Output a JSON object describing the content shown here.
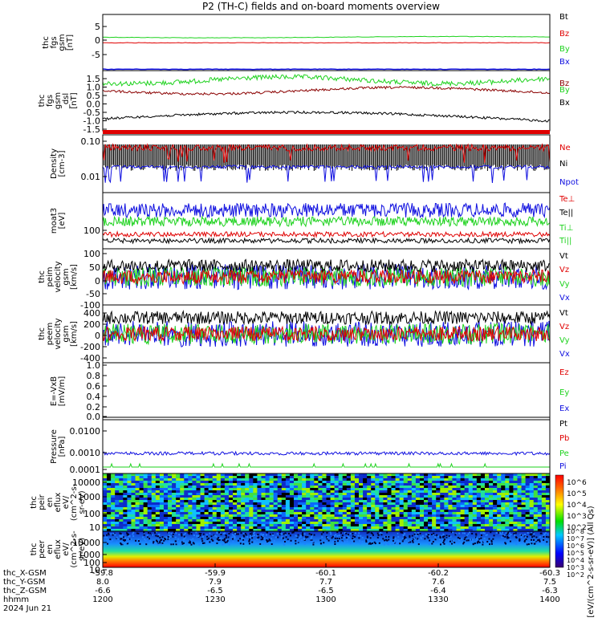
{
  "title": "P2 (TH-C) fields and on-board moments overview",
  "colors": {
    "black": "#000000",
    "red": "#e00000",
    "green": "#1ed21e",
    "blue": "#1010e0",
    "darkred": "#8b0000"
  },
  "panels": [
    {
      "id": "fgs",
      "ylabel": [
        "thc",
        "fgs",
        "gsm",
        "[nT]"
      ],
      "legend": [
        [
          "Bt",
          "black"
        ],
        [
          "Bz",
          "red"
        ],
        [
          "By",
          "green"
        ],
        [
          "Bx",
          "blue"
        ]
      ],
      "ticks": [
        "5",
        "0",
        "-5"
      ]
    },
    {
      "id": "fgs-dsl",
      "ylabel": [
        "thc",
        "fgs",
        "gsm",
        "_dsl",
        "[nT]"
      ],
      "legend": [
        [
          "Bz",
          "darkred"
        ],
        [
          "By",
          "green"
        ],
        [
          "Bx",
          "black"
        ]
      ],
      "ticks": [
        "1.5",
        "1.0",
        "0.5",
        "0.0",
        "-0.5",
        "-1.0",
        "-1.5"
      ]
    },
    {
      "id": "density",
      "ylabel": [
        "Density",
        "[cm-3]"
      ],
      "legend": [
        [
          "Ne",
          "red"
        ],
        [
          "Ni",
          "black"
        ],
        [
          "Npot",
          "blue"
        ]
      ],
      "ticks": [
        "0.10",
        "0.01"
      ]
    },
    {
      "id": "temp",
      "ylabel": [
        "moat3",
        "[eV]"
      ],
      "legend": [
        [
          "Te⊥",
          "red"
        ],
        [
          "Te||",
          "black"
        ],
        [
          "Ti⊥",
          "green"
        ],
        [
          "Ti||",
          "green"
        ]
      ],
      "ticks": [
        "100"
      ]
    },
    {
      "id": "peim",
      "ylabel": [
        "thc",
        "peim",
        "velocity",
        "gsm",
        "[km/s]"
      ],
      "legend": [
        [
          "Vt",
          "black"
        ],
        [
          "Vz",
          "red"
        ],
        [
          "Vy",
          "green"
        ],
        [
          "Vx",
          "blue"
        ]
      ],
      "ticks": [
        "100",
        "50",
        "0",
        "-50",
        "-100"
      ]
    },
    {
      "id": "peem",
      "ylabel": [
        "thc",
        "peem",
        "velocity",
        "gsm",
        "[km/s]"
      ],
      "legend": [
        [
          "Vt",
          "black"
        ],
        [
          "Vz",
          "red"
        ],
        [
          "Vy",
          "green"
        ],
        [
          "Vx",
          "blue"
        ]
      ],
      "ticks": [
        "400",
        "200",
        "0",
        "-200",
        "-400"
      ]
    },
    {
      "id": "efield",
      "ylabel": [
        "E=-VxB",
        "[mV/m]"
      ],
      "legend": [
        [
          "Ez",
          "red"
        ],
        [
          "Ey",
          "green"
        ],
        [
          "Ex",
          "blue"
        ]
      ],
      "ticks": [
        "1.0",
        "0.8",
        "0.6",
        "0.4",
        "0.2",
        "0.0"
      ]
    },
    {
      "id": "pressure",
      "ylabel": [
        "Pressure",
        "[nPa]"
      ],
      "legend": [
        [
          "Pt",
          "black"
        ],
        [
          "Pb",
          "red"
        ],
        [
          "Pe",
          "green"
        ],
        [
          "Pi",
          "blue"
        ]
      ],
      "ticks": [
        "0.0100",
        "0.0010",
        "0.0001"
      ]
    },
    {
      "id": "peir",
      "ylabel": [
        "thc",
        "peir",
        "en",
        "eflux",
        "eV/",
        "(cm^2-s-",
        "sr-eV)"
      ],
      "legend": [],
      "ticks": [
        "10000",
        "1000",
        "100",
        "10"
      ]
    },
    {
      "id": "peer",
      "ylabel": [
        "thc",
        "peer",
        "en",
        "eflux",
        "eV/",
        "(cm^2-s-",
        "sr-eV)"
      ],
      "legend": [],
      "ticks": [
        "10000",
        "1000",
        "100",
        "10"
      ]
    }
  ],
  "colorbar": {
    "label": "[eV/(cm^2-s-sr-eV)] (All Qs)",
    "ticks_top": [
      "10^6",
      "10^5",
      "10^4",
      "10^3",
      "10^2"
    ],
    "ticks_bottom": [
      "10^8",
      "10^7",
      "10^6",
      "10^5",
      "10^4",
      "10^3",
      "10^2"
    ]
  },
  "xaxis": {
    "row_labels": [
      "thc_X-GSM",
      "thc_Y-GSM",
      "thc_Z-GSM",
      "hhmm",
      "2024 Jun 21"
    ],
    "columns": [
      [
        "-59.8",
        "8.0",
        "-6.6",
        "1200"
      ],
      [
        "-59.9",
        "7.9",
        "-6.5",
        "1230"
      ],
      [
        "-60.1",
        "7.7",
        "-6.5",
        "1300"
      ],
      [
        "-60.2",
        "7.6",
        "-6.4",
        "1330"
      ],
      [
        "-60.3",
        "7.5",
        "-6.3",
        "1400"
      ]
    ]
  },
  "chart_data": {
    "type": "line",
    "title": "P2 (TH-C) fields and on-board moments overview",
    "x_ticks": [
      "1200",
      "1230",
      "1300",
      "1330",
      "1400"
    ],
    "xlabel": "hhmm",
    "date": "2024 Jun 21",
    "series": [
      {
        "name": "Bt",
        "panel": "fgs",
        "approx": 1.5
      },
      {
        "name": "Bz",
        "panel": "fgs",
        "approx": 0.0
      },
      {
        "name": "By",
        "panel": "fgs",
        "approx": 1.5
      },
      {
        "name": "Bx",
        "panel": "fgs",
        "approx": -1.5
      },
      {
        "name": "Ne",
        "panel": "density",
        "approx": 0.06
      },
      {
        "name": "Ni",
        "panel": "density",
        "approx": 0.03
      },
      {
        "name": "Npot",
        "panel": "density",
        "approx": 0.03
      },
      {
        "name": "Pe",
        "panel": "pressure",
        "approx": 0.0009
      }
    ]
  }
}
